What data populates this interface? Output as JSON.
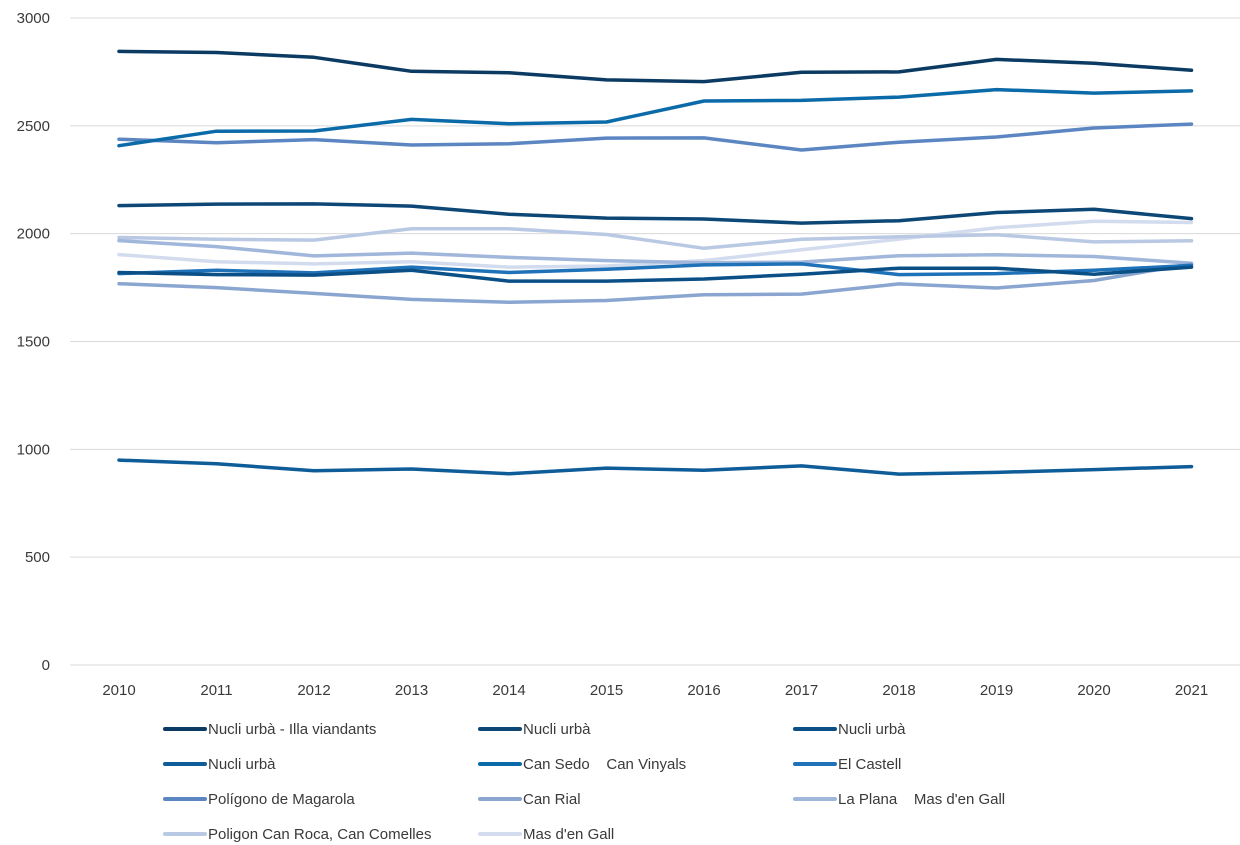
{
  "chart_data": {
    "type": "line",
    "title": "",
    "xlabel": "",
    "ylabel": "",
    "ylim": [
      0,
      3000
    ],
    "yticks": [
      "0",
      "500",
      "1000",
      "1500",
      "2000",
      "2500",
      "3000"
    ],
    "grid": "horizontal",
    "legend_position": "bottom",
    "categories": [
      "2010",
      "2011",
      "2012",
      "2013",
      "2014",
      "2015",
      "2016",
      "2017",
      "2018",
      "2019",
      "2020",
      "2021"
    ],
    "series": [
      {
        "name": "Nucli urbà - Illa viandants",
        "color": "#0b3a63",
        "values": [
          2845,
          2840,
          2818,
          2753,
          2746,
          2713,
          2705,
          2748,
          2750,
          2808,
          2790,
          2758
        ]
      },
      {
        "name": "Nucli urbà",
        "color": "#0d4776",
        "values": [
          2130,
          2137,
          2138,
          2128,
          2090,
          2072,
          2068,
          2049,
          2060,
          2098,
          2113,
          2070
        ]
      },
      {
        "name": "Nucli urbà",
        "color": "#0a4f86",
        "values": [
          1820,
          1810,
          1808,
          1830,
          1780,
          1780,
          1790,
          1812,
          1840,
          1840,
          1812,
          1845
        ]
      },
      {
        "name": "Nucli urbà",
        "color": "#0e5c98",
        "values": [
          950,
          933,
          901,
          909,
          887,
          913,
          903,
          923,
          885,
          893,
          906,
          920
        ]
      },
      {
        "name": "Can Sedo    Can Vinyals",
        "color": "#0b6aa8",
        "values": [
          2408,
          2475,
          2476,
          2530,
          2510,
          2518,
          2615,
          2618,
          2633,
          2668,
          2652,
          2662
        ]
      },
      {
        "name": "El Castell",
        "color": "#1f72b8",
        "values": [
          1815,
          1830,
          1818,
          1845,
          1820,
          1835,
          1855,
          1860,
          1810,
          1815,
          1830,
          1853
        ]
      },
      {
        "name": "Polígono de Magarola",
        "color": "#5b86c2",
        "values": [
          2438,
          2422,
          2436,
          2411,
          2417,
          2443,
          2444,
          2388,
          2424,
          2448,
          2490,
          2508
        ]
      },
      {
        "name": "Can Rial",
        "color": "#8aa6d0",
        "values": [
          1768,
          1750,
          1723,
          1695,
          1682,
          1690,
          1717,
          1720,
          1767,
          1748,
          1783,
          1860
        ]
      },
      {
        "name": "La Plana    Mas d'en Gall",
        "color": "#a0b6da",
        "values": [
          1968,
          1940,
          1897,
          1910,
          1890,
          1875,
          1865,
          1868,
          1898,
          1902,
          1894,
          1863
        ]
      },
      {
        "name": "Poligon Can Roca, Can Comelles",
        "color": "#b9c8e3",
        "values": [
          1982,
          1974,
          1970,
          2023,
          2023,
          1996,
          1932,
          1974,
          1986,
          1995,
          1962,
          1967
        ]
      },
      {
        "name": "Mas d'en Gall",
        "color": "#d2dcee",
        "values": [
          1903,
          1870,
          1860,
          1870,
          1845,
          1850,
          1875,
          1925,
          1975,
          2027,
          2058,
          2052
        ]
      }
    ]
  }
}
